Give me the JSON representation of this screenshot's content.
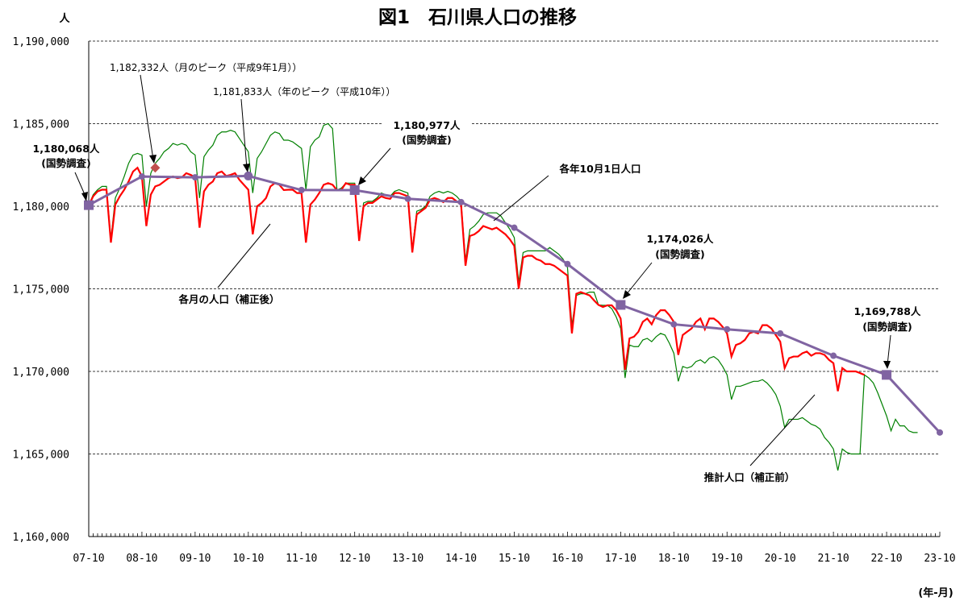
{
  "chart_data": {
    "type": "line",
    "title": "図1　石川県人口の推移",
    "ylabel": "人",
    "xlabel": "(年-月)",
    "ylim": [
      1160000,
      1190000
    ],
    "yticks": [
      1160000,
      1165000,
      1170000,
      1175000,
      1180000,
      1185000,
      1190000
    ],
    "ytick_labels": [
      "1,160,000",
      "1,165,000",
      "1,170,000",
      "1,175,000",
      "1,180,000",
      "1,185,000",
      "1,190,000"
    ],
    "xtick_labels": [
      "07-10",
      "08-10",
      "09-10",
      "10-10",
      "11-10",
      "12-10",
      "13-10",
      "14-10",
      "15-10",
      "16-10",
      "17-10",
      "18-10",
      "19-10",
      "20-10",
      "21-10",
      "22-10",
      "23-10"
    ],
    "grid": true,
    "colors": {
      "monthly_adjusted": "#ff0000",
      "estimated_unadjusted": "#008000",
      "october": "#8064a2"
    },
    "series": [
      {
        "name": "各年10月1日人口",
        "marker": "circle",
        "x": [
          "07-10",
          "08-10",
          "09-10",
          "10-10",
          "11-10",
          "12-10",
          "13-10",
          "14-10",
          "15-10",
          "16-10",
          "17-10",
          "18-10",
          "19-10",
          "20-10",
          "21-10",
          "22-10",
          "23-10"
        ],
        "values": [
          1180068,
          1181800,
          1181750,
          1181833,
          1180980,
          1180977,
          1180450,
          1180250,
          1178700,
          1176500,
          1174026,
          1172850,
          1172550,
          1172300,
          1170950,
          1169788,
          1166300
        ]
      },
      {
        "name": "各月の人口（補正後）",
        "start": "07-10",
        "values": [
          1180068,
          1180600,
          1180900,
          1181000,
          1181000,
          1177800,
          1180100,
          1180600,
          1181000,
          1181500,
          1182100,
          1182332,
          1181800,
          1178800,
          1180700,
          1181200,
          1181300,
          1181500,
          1181700,
          1181800,
          1181700,
          1181750,
          1182000,
          1181900,
          1181750,
          1178700,
          1180900,
          1181300,
          1181500,
          1182000,
          1182100,
          1181833,
          1181900,
          1182000,
          1181600,
          1181300,
          1181000,
          1178300,
          1180000,
          1180200,
          1180500,
          1181200,
          1181400,
          1181300,
          1180980,
          1181000,
          1181000,
          1180800,
          1180800,
          1177800,
          1180100,
          1180400,
          1180800,
          1181300,
          1181400,
          1181300,
          1180977,
          1181000,
          1181400,
          1181300,
          1181300,
          1177900,
          1180000,
          1180200,
          1180200,
          1180400,
          1180600,
          1180500,
          1180450,
          1180800,
          1180800,
          1180700,
          1180600,
          1177200,
          1179500,
          1179700,
          1179900,
          1180400,
          1180500,
          1180400,
          1180250,
          1180500,
          1180500,
          1180300,
          1180100,
          1176400,
          1178200,
          1178300,
          1178500,
          1178800,
          1178700,
          1178600,
          1178700,
          1178500,
          1178300,
          1178000,
          1177600,
          1175000,
          1176900,
          1177000,
          1177000,
          1176800,
          1176700,
          1176500,
          1176500,
          1176400,
          1176200,
          1176000,
          1175800,
          1172300,
          1174700,
          1174800,
          1174700,
          1174600,
          1174300,
          1174026,
          1173900,
          1174000,
          1174000,
          1173700,
          1173200,
          1170100,
          1172000,
          1172100,
          1172400,
          1173000,
          1173200,
          1172850,
          1173400,
          1173700,
          1173700,
          1173400,
          1173000,
          1171000,
          1172200,
          1172400,
          1172600,
          1173000,
          1173200,
          1172550,
          1173200,
          1173200,
          1173000,
          1172700,
          1172300,
          1170900,
          1171600,
          1171700,
          1171900,
          1172300,
          1172400,
          1172300,
          1172800,
          1172800,
          1172600,
          1172200,
          1171800,
          1170200,
          1170800,
          1170900,
          1170900,
          1171100,
          1171200,
          1170950,
          1171100,
          1171100,
          1171000,
          1170700,
          1170500,
          1168800,
          1170200,
          1170000,
          1170000,
          1170000,
          1169900,
          1169788
        ]
      },
      {
        "name": "推計人口（補正前）",
        "start": "07-10",
        "values": [
          1180068,
          1180700,
          1181000,
          1181200,
          1181200,
          1178000,
          1180500,
          1181100,
          1181800,
          1182600,
          1183100,
          1183200,
          1183100,
          1180000,
          1182000,
          1182600,
          1182900,
          1183300,
          1183500,
          1183800,
          1183700,
          1183800,
          1183700,
          1183300,
          1183100,
          1180500,
          1183000,
          1183400,
          1183700,
          1184300,
          1184500,
          1184500,
          1184600,
          1184500,
          1184100,
          1183700,
          1183300,
          1180800,
          1182900,
          1183300,
          1183800,
          1184300,
          1184500,
          1184400,
          1184000,
          1184000,
          1183900,
          1183700,
          1183500,
          1181000,
          1183600,
          1184000,
          1184200,
          1184900,
          1185000,
          1184700,
          1180977,
          1181100,
          1181400,
          1181400,
          1181400,
          1178000,
          1180200,
          1180300,
          1180300,
          1180500,
          1180800,
          1180700,
          1180600,
          1180900,
          1181000,
          1180900,
          1180800,
          1177400,
          1179700,
          1179800,
          1180000,
          1180600,
          1180800,
          1180900,
          1180800,
          1180900,
          1180800,
          1180600,
          1180300,
          1176700,
          1178600,
          1178800,
          1179100,
          1179500,
          1179600,
          1179600,
          1179600,
          1179400,
          1179000,
          1178600,
          1178100,
          1175400,
          1177200,
          1177300,
          1177300,
          1177300,
          1177300,
          1177300,
          1177500,
          1177300,
          1177100,
          1176800,
          1176300,
          1172800,
          1174600,
          1174700,
          1174700,
          1174800,
          1174800,
          1174026,
          1174000,
          1174000,
          1173800,
          1173300,
          1172600,
          1169600,
          1171600,
          1171500,
          1171500,
          1171900,
          1172000,
          1171800,
          1172100,
          1172300,
          1172200,
          1171700,
          1171100,
          1169400,
          1170300,
          1170200,
          1170300,
          1170600,
          1170700,
          1170500,
          1170800,
          1170900,
          1170700,
          1170300,
          1169800,
          1168300,
          1169100,
          1169100,
          1169200,
          1169300,
          1169400,
          1169400,
          1169500,
          1169300,
          1169000,
          1168600,
          1167900,
          1166600,
          1167100,
          1167100,
          1167100,
          1167200,
          1167000,
          1166800,
          1166700,
          1166500,
          1166000,
          1165700,
          1165300,
          1164000,
          1165300,
          1165100,
          1165000,
          1165000,
          1165000,
          1169788,
          1169600,
          1169300,
          1168700,
          1168000,
          1167300,
          1166400,
          1167100,
          1166700,
          1166700,
          1166400,
          1166300,
          1166300
        ]
      }
    ],
    "annotations": {
      "census_07": {
        "value": "1,180,068人",
        "note": "(国勢調査)"
      },
      "month_peak": "1,182,332人（月のピーク（平成9年1月））",
      "year_peak": "1,181,833人（年のピーク（平成10年））",
      "census_12": {
        "value": "1,180,977人",
        "note": "(国勢調査)"
      },
      "census_17": {
        "value": "1,174,026人",
        "note": "(国勢調査)"
      },
      "census_22": {
        "value": "1,169,788人",
        "note": "(国勢調査)"
      },
      "label_october": "各年10月1日人口",
      "label_monthly": "各月の人口（補正後）",
      "label_estimated": "推計人口（補正前）"
    }
  }
}
